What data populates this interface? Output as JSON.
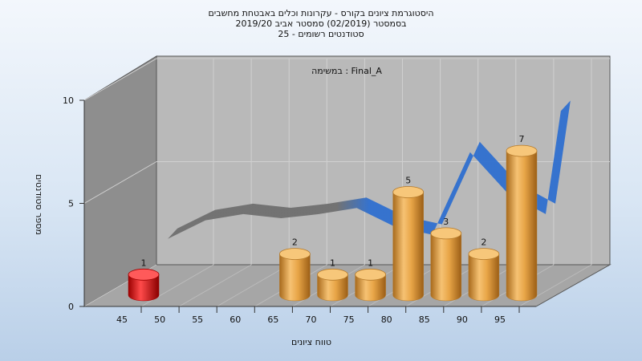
{
  "chart_data": {
    "type": "bar",
    "title_lines": [
      "היסטוגרמת ציונים בקורס - עקרונות וכלים באבטחת מחשבים",
      "בסמסטר  (02/2019)  סמסטר אביב 2019/20",
      "סטודנטים רשומים - 25"
    ],
    "subtitle": "במשימה : Final_A",
    "xlabel": "טווח ציונים",
    "ylabel": "מספר סטודנטים",
    "ylim": [
      0,
      10
    ],
    "y_ticks": [
      "0",
      "5",
      "10"
    ],
    "x_ticks": [
      "45",
      "50",
      "55",
      "60",
      "65",
      "70",
      "75",
      "80",
      "85",
      "90",
      "95"
    ],
    "bars": [
      {
        "x": 45,
        "value": 1,
        "label": "1"
      },
      {
        "x": 65,
        "value": 2,
        "label": "2"
      },
      {
        "x": 70,
        "value": 1,
        "label": "1"
      },
      {
        "x": 75,
        "value": 1,
        "label": "1"
      },
      {
        "x": 80,
        "value": 5,
        "label": "5"
      },
      {
        "x": 85,
        "value": 3,
        "label": "3"
      },
      {
        "x": 90,
        "value": 2,
        "label": "2"
      },
      {
        "x": 95,
        "value": 7,
        "label": "7"
      }
    ],
    "ribbon": {
      "x": [
        45,
        50,
        55,
        60,
        65,
        70,
        75,
        80,
        85,
        90,
        95,
        97
      ],
      "y": [
        1.8,
        2.7,
        3.0,
        2.8,
        3.0,
        3.3,
        2.4,
        2.0,
        6.0,
        4.0,
        3.0,
        8.0
      ]
    },
    "colors": {
      "fail_bar": "#e01010",
      "pass_bar": "#e8a547",
      "ribbon_low": "#6f6f6f",
      "ribbon_high": "#2f6fcf",
      "back_wall": "#b9b9b9",
      "side_wall": "#8e8e8e",
      "floor": "#a6a6a6"
    }
  }
}
